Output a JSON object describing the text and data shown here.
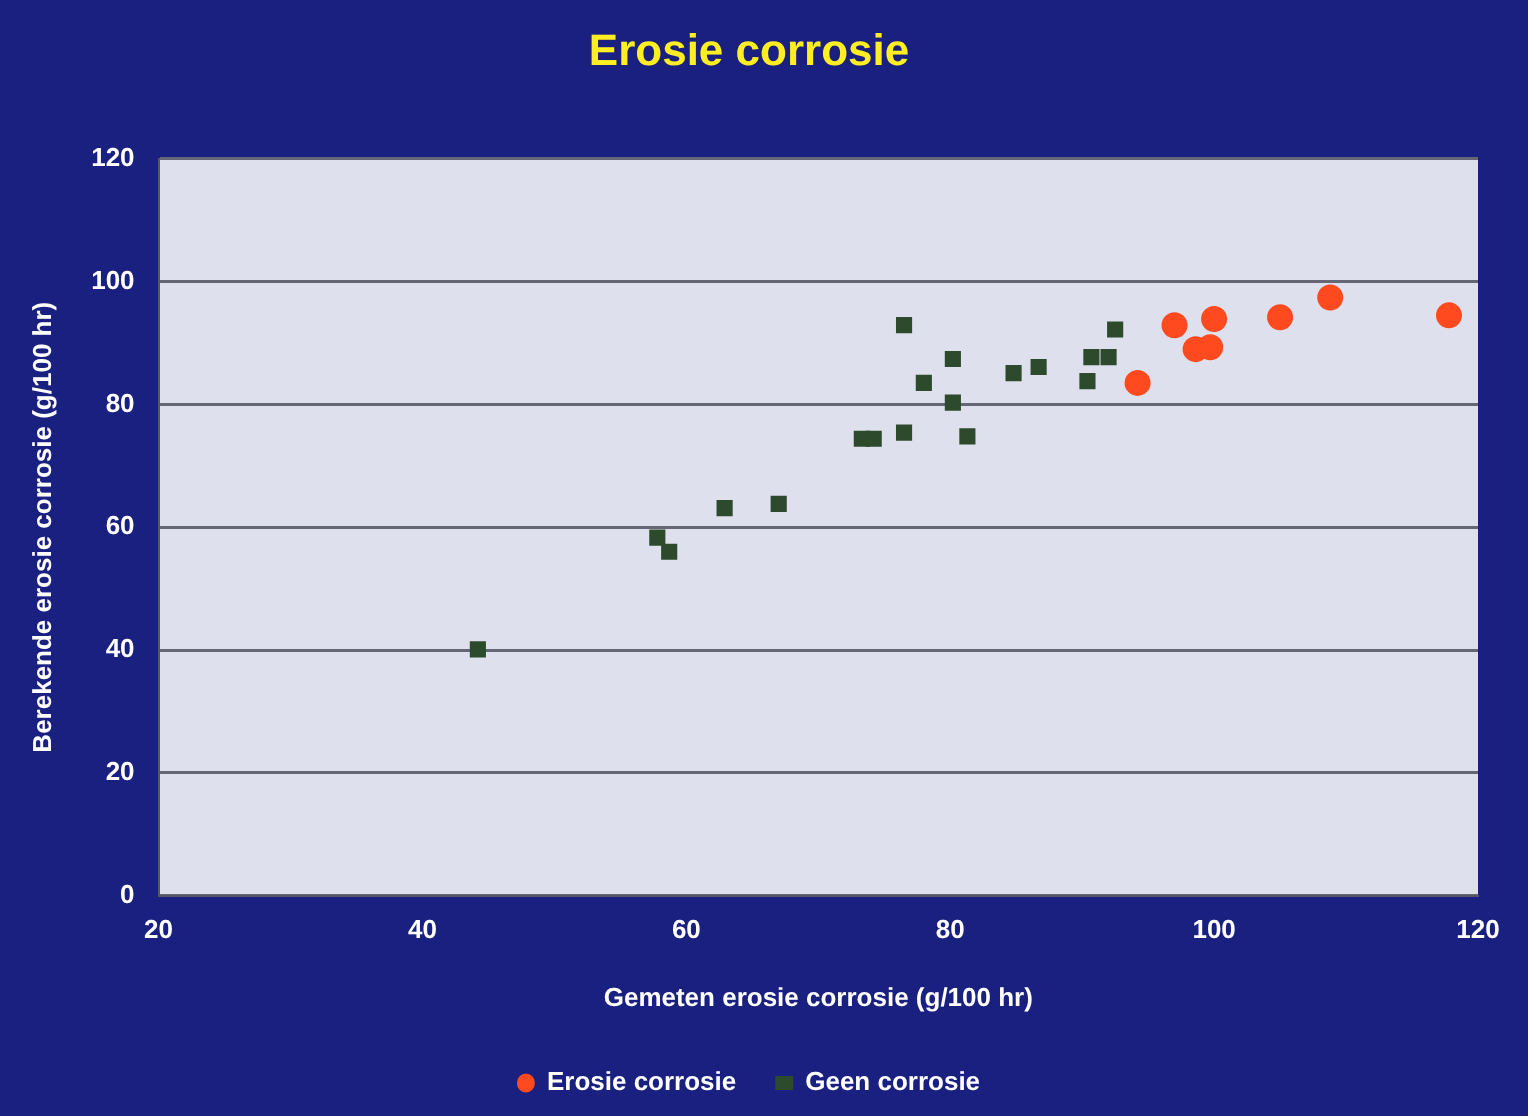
{
  "chart_data": {
    "type": "scatter",
    "title": "Erosie corrosie",
    "xlabel": "Gemeten erosie corrosie (g/100 hr)",
    "ylabel": "Berekende erosie corrosie (g/100 hr)",
    "xlim": [
      20,
      120
    ],
    "xticks": [
      20,
      40,
      60,
      80,
      100,
      120
    ],
    "ylim": [
      0,
      120
    ],
    "yticks": [
      0,
      20,
      40,
      60,
      80,
      100,
      120
    ],
    "grid": "y",
    "legend": "bottom",
    "series": [
      {
        "name": "Erosie corrosie",
        "color": "#ff4a1f",
        "marker": "circle",
        "x": [
          94.2,
          97,
          100,
          98.6,
          99.7,
          105,
          108.8,
          117.8
        ],
        "values": [
          83.5,
          92.9,
          93.9,
          89.0,
          89.3,
          94.2,
          97.4,
          94.5
        ]
      },
      {
        "name": "Geen corrosie",
        "color": "#2d4a2d",
        "marker": "square",
        "x": [
          44.2,
          57.8,
          58.7,
          62.9,
          67.0,
          73.3,
          74.2,
          76.5,
          76.5,
          78.0,
          80.2,
          80.2,
          81.3,
          84.8,
          86.7,
          90.4,
          90.7,
          92.0,
          92.5
        ],
        "values": [
          40.1,
          58.3,
          56,
          63.1,
          63.8,
          74.4,
          74.4,
          92.9,
          75.4,
          83.5,
          87.4,
          80.3,
          74.8,
          85.1,
          86.1,
          83.8,
          87.7,
          87.7,
          92.2
        ]
      }
    ]
  }
}
